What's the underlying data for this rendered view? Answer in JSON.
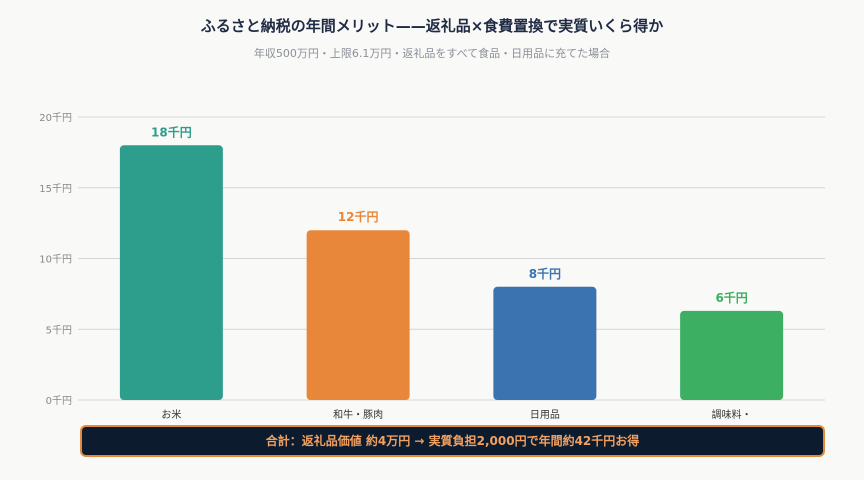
{
  "header": {
    "title": "ふるさと納税の年間メリット——返礼品×食費置換で実質いくら得か",
    "subtitle": "年収500万円・上限6.1万円・返礼品をすべて食品・日用品に充てた場合"
  },
  "footer": {
    "text": "合計：返礼品価値 約4万円 → 実質負担2,000円で年間約42千円お得"
  },
  "chart_data": {
    "type": "bar",
    "categories": [
      "お米",
      "和牛・豚肉",
      "日用品",
      "調味料・"
    ],
    "values": [
      18,
      12,
      8,
      6.3
    ],
    "data_labels": [
      "18千円",
      "12千円",
      "8千円",
      "6千円"
    ],
    "colors": [
      "#2e9e8c",
      "#e8873a",
      "#3b73b0",
      "#3caf63"
    ],
    "ylim": [
      0,
      20
    ],
    "yticks": [
      0,
      5,
      10,
      15,
      20
    ],
    "ytick_labels": [
      "0千円",
      "5千円",
      "10千円",
      "15千円",
      "20千円"
    ],
    "grid": true,
    "title": "ふるさと納税の年間メリット——返礼品×食費置換で実質いくら得か",
    "subtitle": "年収500万円・上限6.1万円・返礼品をすべて食品・日用品に充てた場合"
  }
}
